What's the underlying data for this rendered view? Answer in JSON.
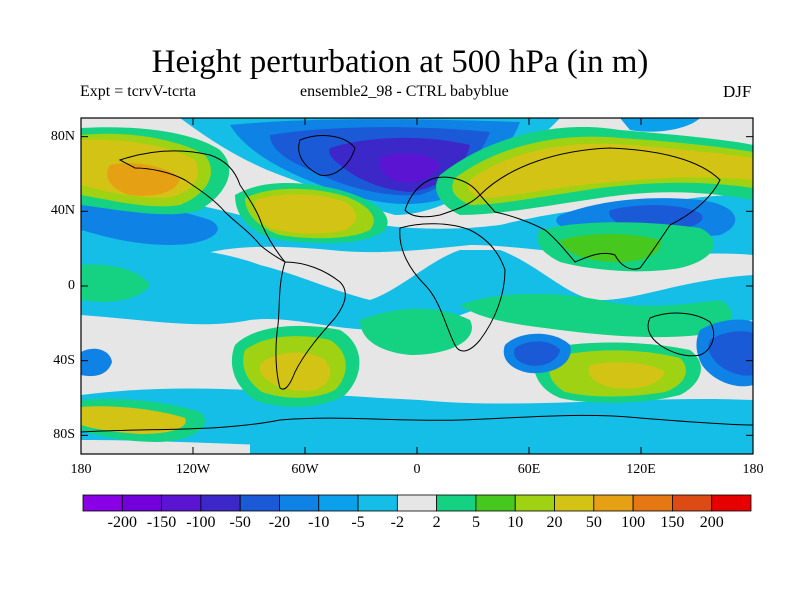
{
  "title": "Height perturbation at 500 hPa (in m)",
  "subtitle_left": "Expt = tcrvV-tcrta",
  "subtitle_center": "ensemble2_98 - CTRL babyblue",
  "subtitle_right": "DJF",
  "map": {
    "lat_ticks": [
      {
        "value": 80,
        "label": "80N"
      },
      {
        "value": 40,
        "label": "40N"
      },
      {
        "value": 0,
        "label": "0"
      },
      {
        "value": -40,
        "label": "40S"
      },
      {
        "value": -80,
        "label": "80S"
      }
    ],
    "lon_ticks": [
      {
        "value": -180,
        "label": "180"
      },
      {
        "value": -120,
        "label": "120W"
      },
      {
        "value": -60,
        "label": "60W"
      },
      {
        "value": 0,
        "label": "0"
      },
      {
        "value": 60,
        "label": "60E"
      },
      {
        "value": 120,
        "label": "120E"
      },
      {
        "value": 180,
        "label": "180"
      }
    ],
    "lon_range": [
      -180,
      180
    ],
    "lat_range": [
      -90,
      90
    ]
  },
  "colorbar": {
    "colors": [
      "#8a00e6",
      "#7300dc",
      "#5a14d2",
      "#3c28c8",
      "#1a5ad7",
      "#0f82e6",
      "#0aa0eb",
      "#14bee6",
      "#e6e6e6",
      "#14d282",
      "#46c81e",
      "#a0d214",
      "#d2c314",
      "#e6a014",
      "#e67814",
      "#dc4b14",
      "#e60000"
    ],
    "labels": [
      "-200",
      "-150",
      "-100",
      "-50",
      "-20",
      "-10",
      "-5",
      "-2",
      "2",
      "5",
      "10",
      "20",
      "50",
      "100",
      "150",
      "200"
    ]
  }
}
